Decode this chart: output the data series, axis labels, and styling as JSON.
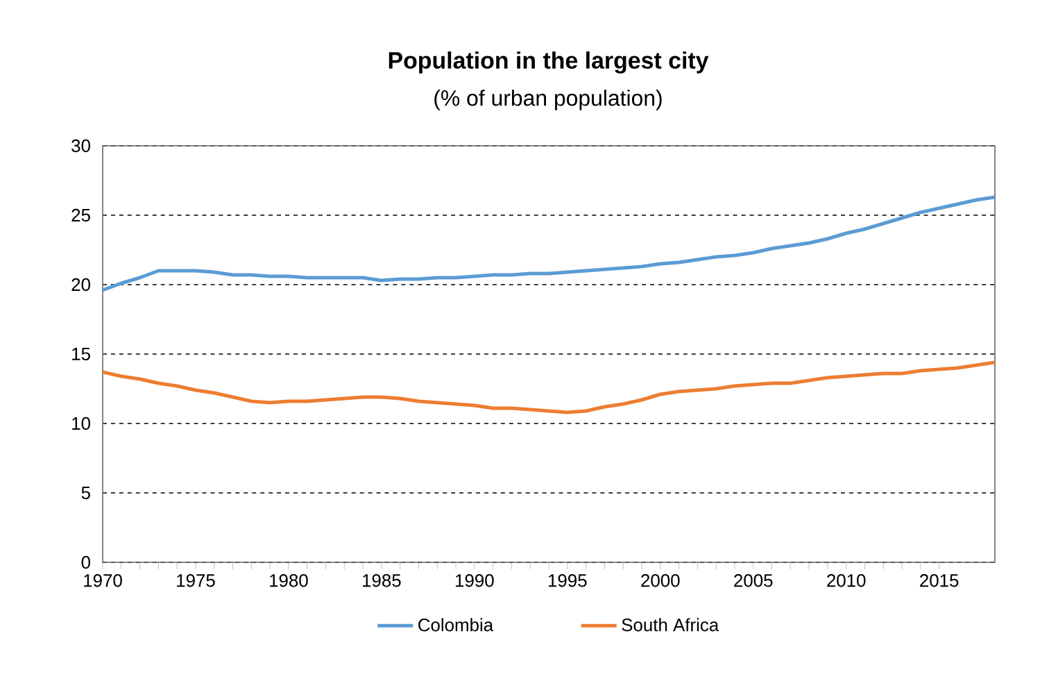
{
  "chart_data": {
    "type": "line",
    "title": "Population in the largest city",
    "subtitle": "(% of urban population)",
    "x": [
      1970,
      1971,
      1972,
      1973,
      1974,
      1975,
      1976,
      1977,
      1978,
      1979,
      1980,
      1981,
      1982,
      1983,
      1984,
      1985,
      1986,
      1987,
      1988,
      1989,
      1990,
      1991,
      1992,
      1993,
      1994,
      1995,
      1996,
      1997,
      1998,
      1999,
      2000,
      2001,
      2002,
      2003,
      2004,
      2005,
      2006,
      2007,
      2008,
      2009,
      2010,
      2011,
      2012,
      2013,
      2014,
      2015,
      2016,
      2017,
      2018
    ],
    "series": [
      {
        "name": "Colombia",
        "color": "#5b9bd5",
        "values": [
          19.6,
          20.1,
          20.5,
          21.0,
          21.0,
          21.0,
          20.9,
          20.7,
          20.7,
          20.6,
          20.6,
          20.5,
          20.5,
          20.5,
          20.5,
          20.3,
          20.4,
          20.4,
          20.5,
          20.5,
          20.6,
          20.7,
          20.7,
          20.8,
          20.8,
          20.9,
          21.0,
          21.1,
          21.2,
          21.3,
          21.5,
          21.6,
          21.8,
          22.0,
          22.1,
          22.3,
          22.6,
          22.8,
          23.0,
          23.3,
          23.7,
          24.0,
          24.4,
          24.8,
          25.2,
          25.5,
          25.8,
          26.1,
          26.3
        ]
      },
      {
        "name": "South Africa",
        "color": "#ed7d31",
        "values": [
          13.7,
          13.4,
          13.2,
          12.9,
          12.7,
          12.4,
          12.2,
          11.9,
          11.6,
          11.5,
          11.6,
          11.6,
          11.7,
          11.8,
          11.9,
          11.9,
          11.8,
          11.6,
          11.5,
          11.4,
          11.3,
          11.1,
          11.1,
          11.0,
          10.9,
          10.8,
          10.9,
          11.2,
          11.4,
          11.7,
          12.1,
          12.3,
          12.4,
          12.5,
          12.7,
          12.8,
          12.9,
          12.9,
          13.1,
          13.3,
          13.4,
          13.5,
          13.6,
          13.6,
          13.8,
          13.9,
          14.0,
          14.2,
          14.4
        ]
      }
    ],
    "xlim": [
      1970,
      2018
    ],
    "xticks": [
      1970,
      1975,
      1980,
      1985,
      1990,
      1995,
      2000,
      2005,
      2010,
      2015
    ],
    "ylim": [
      0,
      30
    ],
    "yticks": [
      0,
      5,
      10,
      15,
      20,
      25,
      30
    ],
    "grid": "y",
    "legend": "bottom",
    "marker": "none",
    "line_style": "solid"
  }
}
